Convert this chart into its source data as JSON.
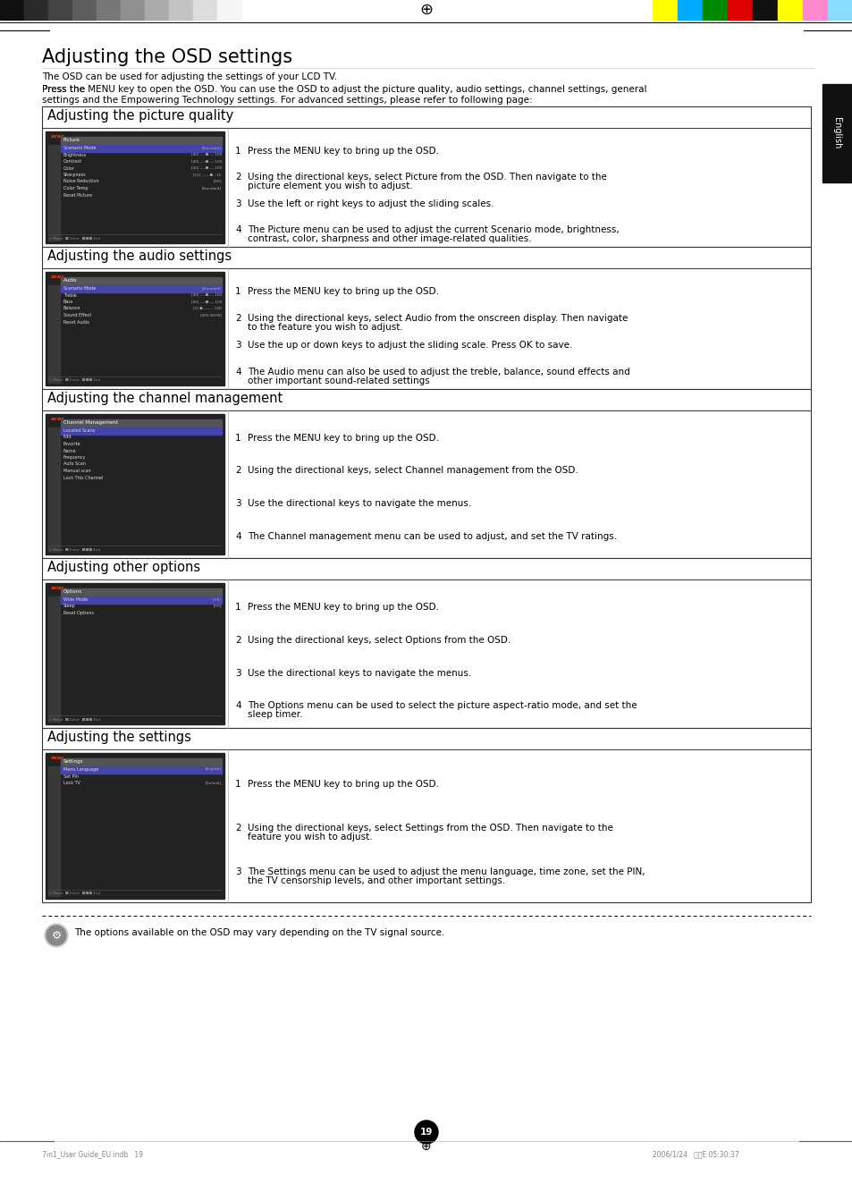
{
  "title": "Adjusting the OSD settings",
  "intro_line1": "The OSD can be used for adjusting the settings of your LCD TV.",
  "intro_line2a": "Press the ",
  "intro_bold": "MENU",
  "intro_line2b": " key to open the OSD. You can use the OSD to adjust the picture quality, audio settings, channel settings, general",
  "intro_line3": "settings and the Empowering Technology settings. For advanced settings, please refer to following page:",
  "sections": [
    {
      "title": "Adjusting the picture quality",
      "items": [
        {
          "num": "1",
          "pre": "Press the ",
          "bold": "MENU",
          "post": " key to bring up the OSD."
        },
        {
          "num": "2",
          "pre": "Using the directional keys, select ",
          "bold": "Picture",
          "post": " from the OSD. Then navigate to the picture element you wish to adjust."
        },
        {
          "num": "3",
          "pre": "Use the left or right keys to adjust the sliding scales.",
          "bold": "",
          "post": ""
        },
        {
          "num": "4",
          "pre": "The ",
          "bold": "Picture",
          "post": " menu can be used to adjust the current Scenario mode, brightness, contrast, color, sharpness and other image-related qualities."
        }
      ],
      "screenshot_menu": "Picture",
      "screenshot_items": [
        "Scenario Mode",
        "Brightness",
        "Contrast",
        "Color",
        "Sharpness",
        "Noise Reduction",
        "Color Temp",
        "Reset Picture"
      ],
      "screenshot_values": [
        "[Standard]",
        "[40] ----●---- 100",
        "[40] ----●---- 100",
        "[40] ----●---- 100",
        "[11] ------●-- 15",
        "[Off]",
        "[Standard]",
        ""
      ]
    },
    {
      "title": "Adjusting the audio settings",
      "items": [
        {
          "num": "1",
          "pre": "Press the ",
          "bold": "MENU",
          "post": " key to bring up the OSD."
        },
        {
          "num": "2",
          "pre": "Using the directional keys, select ",
          "bold": "Audio",
          "post": " from the onscreen display. Then navigate to the feature you wish to adjust."
        },
        {
          "num": "3",
          "pre": "Use the up or down keys to adjust the sliding scale. Press ",
          "bold": "OK",
          "post": " to save."
        },
        {
          "num": "4",
          "pre": "The ",
          "bold": "Audio",
          "post": " menu can also be used to adjust the treble, balance, sound effects and other important sound-related settings"
        }
      ],
      "screenshot_menu": "Audio",
      "screenshot_items": [
        "Scenario Mode",
        "Treble",
        "Bass",
        "Balance",
        "Sound Effect",
        "Reset Audio"
      ],
      "screenshot_values": [
        "[Standard]",
        "[40] ----●---- 100",
        "[40] ----●---- 100",
        "[0] ●-------- 100",
        "[SRS WOW]",
        ""
      ]
    },
    {
      "title": "Adjusting the channel management",
      "items": [
        {
          "num": "1",
          "pre": "Press the ",
          "bold": "MENU",
          "post": " key to bring up the OSD."
        },
        {
          "num": "2",
          "pre": "Using the directional keys, select ",
          "bold": "Channel management",
          "post": " from the OSD."
        },
        {
          "num": "3",
          "pre": "Use the directional keys to navigate the menus.",
          "bold": "",
          "post": ""
        },
        {
          "num": "4",
          "pre": "The ",
          "bold": "Channel management",
          "post": " menu can be used to adjust, and set the TV ratings."
        }
      ],
      "screenshot_menu": "Channel Management",
      "screenshot_items": [
        "Located Scans",
        "Edit",
        "Favorite",
        "Name",
        "Frequency",
        "Auto Scan",
        "Manual scan",
        "Lock This Channel"
      ],
      "screenshot_values": [
        "",
        "",
        "",
        "",
        "",
        "",
        "",
        ""
      ]
    },
    {
      "title": "Adjusting other options",
      "items": [
        {
          "num": "1",
          "pre": "Press the ",
          "bold": "MENU",
          "post": " key to bring up the OSD."
        },
        {
          "num": "2",
          "pre": "Using the directional keys, select ",
          "bold": "Options",
          "post": " from the OSD."
        },
        {
          "num": "3",
          "pre": "Use the directional keys to navigate the menus.",
          "bold": "",
          "post": ""
        },
        {
          "num": "4",
          "pre": "The ",
          "bold": "Options",
          "post": " menu can be used to select the picture aspect-ratio mode, and set the sleep timer."
        }
      ],
      "screenshot_menu": "Options",
      "screenshot_items": [
        "Wide Mode",
        "Sleep",
        "Reset Options"
      ],
      "screenshot_values": [
        "[7/8]",
        "[Off]",
        ""
      ]
    },
    {
      "title": "Adjusting the settings",
      "items": [
        {
          "num": "1",
          "pre": "Press the ",
          "bold": "MENU",
          "post": " key to bring up the OSD."
        },
        {
          "num": "2",
          "pre": "Using the directional keys, select ",
          "bold": "Settings",
          "post": " from the OSD. Then navigate to the feature you wish to adjust."
        },
        {
          "num": "3",
          "pre": "The ",
          "bold": "Settings",
          "post": " menu can be used to adjust the menu language, time zone, set the PIN, the TV censorship levels, and other important settings."
        }
      ],
      "screenshot_menu": "Settings",
      "screenshot_items": [
        "Menu Language",
        "Set Pin",
        "Lock TV"
      ],
      "screenshot_values": [
        "[English]",
        "",
        "[Default]"
      ]
    }
  ],
  "note_text": "The options available on the OSD may vary depending on the TV signal source.",
  "page_number": "19",
  "sidebar_text": "English",
  "bg_color": "#ffffff",
  "section_border_color": "#000000",
  "section_title_size": 10.5,
  "body_text_size": 7.5,
  "main_title_size": 15,
  "header_grays": [
    "#111111",
    "#2a2a2a",
    "#444444",
    "#5d5d5d",
    "#777777",
    "#909090",
    "#aaaaaa",
    "#c3c3c3",
    "#dddddd",
    "#f5f5f5"
  ],
  "header_colors": [
    "#ffff00",
    "#00aaff",
    "#008800",
    "#dd0000",
    "#111111",
    "#ffff00",
    "#ff88cc",
    "#88ddff"
  ]
}
